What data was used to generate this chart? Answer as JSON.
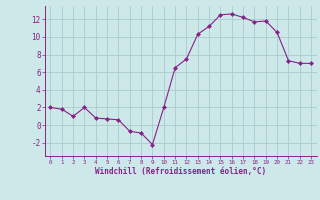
{
  "x": [
    0,
    1,
    2,
    3,
    4,
    5,
    6,
    7,
    8,
    9,
    10,
    11,
    12,
    13,
    14,
    15,
    16,
    17,
    18,
    19,
    20,
    21,
    22,
    23
  ],
  "y": [
    2.0,
    1.8,
    1.0,
    2.0,
    0.8,
    0.7,
    0.6,
    -0.7,
    -0.9,
    -2.2,
    2.0,
    6.5,
    7.5,
    10.3,
    11.2,
    12.5,
    12.6,
    12.2,
    11.7,
    11.8,
    10.5,
    7.3,
    7.0,
    7.0
  ],
  "xlabel": "Windchill (Refroidissement éolien,°C)",
  "xlim": [
    -0.5,
    23.5
  ],
  "ylim": [
    -3.5,
    13.5
  ],
  "yticks": [
    -2,
    0,
    2,
    4,
    6,
    8,
    10,
    12
  ],
  "xticks": [
    0,
    1,
    2,
    3,
    4,
    5,
    6,
    7,
    8,
    9,
    10,
    11,
    12,
    13,
    14,
    15,
    16,
    17,
    18,
    19,
    20,
    21,
    22,
    23
  ],
  "line_color": "#882288",
  "marker": "D",
  "marker_size": 2.0,
  "bg_color": "#cce8e8",
  "grid_color": "#aacccc",
  "label_color": "#882288",
  "spine_color": "#882288"
}
